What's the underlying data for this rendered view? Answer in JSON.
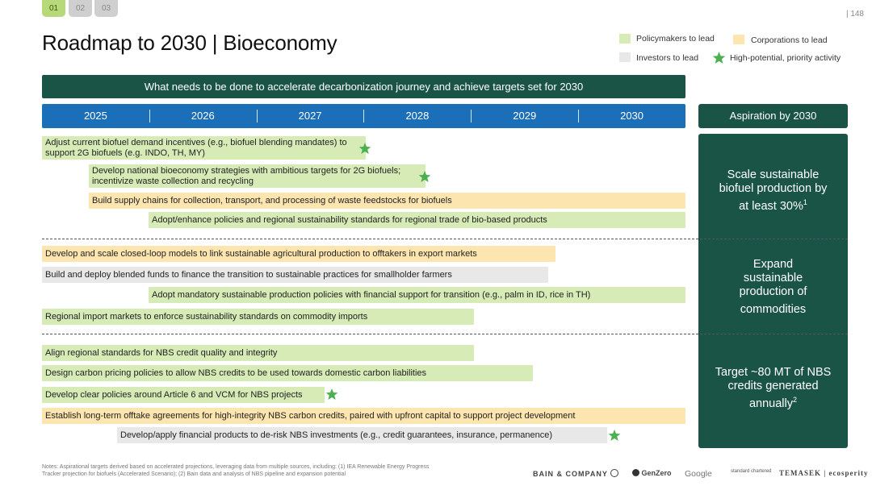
{
  "tabs": [
    "01",
    "02",
    "03"
  ],
  "page_number": "| 148",
  "title": "Roadmap to 2030 | Bioeconomy",
  "legend": {
    "policymakers": "Policymakers to lead",
    "corporations": "Corporations to lead",
    "investors": "Investors to lead",
    "priority": "High-potential, priority activity"
  },
  "colors": {
    "policymakers": "#d7ebb7",
    "corporations": "#fde5b0",
    "investors": "#e8e8e8",
    "dark_green": "#1a5446",
    "blue": "#1a6fb8",
    "star": "#4caf50"
  },
  "banner": "What needs to be done to accelerate decarbonization journey and achieve targets set for 2030",
  "years": [
    "2025",
    "2026",
    "2027",
    "2028",
    "2029",
    "2030"
  ],
  "aspiration_header": "Aspiration by 2030",
  "aspirations": [
    {
      "text": "Scale sustainable biofuel production by at least 30%",
      "sup": "1"
    },
    {
      "text": "Expand sustainable production of commodities",
      "sup": ""
    },
    {
      "text": "Target ~80 MT of NBS credits generated annually",
      "sup": "2"
    }
  ],
  "activities": [
    {
      "text": "Adjust current biofuel demand incentives (e.g., biofuel blending mandates) to support 2G biofuels (e.g. INDO, TH, MY)",
      "lead": "policymakers",
      "priority": true
    },
    {
      "text": "Develop national bioeconomy strategies with ambitious targets for 2G biofuels; incentivize waste collection and recycling",
      "lead": "policymakers",
      "priority": true
    },
    {
      "text": "Build supply chains for collection, transport, and processing of waste feedstocks for biofuels",
      "lead": "corporations",
      "priority": false
    },
    {
      "text": "Adopt/enhance policies and regional sustainability standards for regional trade of bio-based products",
      "lead": "policymakers",
      "priority": false
    },
    {
      "text": "Develop and scale closed-loop models to link sustainable agricultural production to offtakers in export markets",
      "lead": "corporations",
      "priority": false
    },
    {
      "text": "Build and deploy blended funds to finance the transition to sustainable practices for smallholder farmers",
      "lead": "investors",
      "priority": false
    },
    {
      "text": "Adopt mandatory sustainable production policies with financial support for transition (e.g., palm in ID, rice in TH)",
      "lead": "policymakers",
      "priority": false
    },
    {
      "text": "Regional import markets to enforce sustainability standards on commodity imports",
      "lead": "policymakers",
      "priority": false
    },
    {
      "text": "Align regional standards for NBS credit quality and integrity",
      "lead": "policymakers",
      "priority": false
    },
    {
      "text": "Design carbon pricing policies to allow NBS credits to be used towards domestic carbon liabilities",
      "lead": "policymakers",
      "priority": false
    },
    {
      "text": "Develop clear policies around Article 6 and VCM for NBS projects",
      "lead": "policymakers",
      "priority": true
    },
    {
      "text": "Establish long-term offtake agreements for high-integrity NBS carbon credits, paired with upfront capital to support project development",
      "lead": "corporations",
      "priority": false
    },
    {
      "text": "Develop/apply financial products to de-risk NBS investments (e.g., credit guarantees, insurance, permanence)",
      "lead": "investors",
      "priority": true
    }
  ],
  "notes": "Notes: Aspirational targets derived based on accelerated projections, leveraging data from multiple sources, including: (1) IEA Renewable Energy Progress Tracker projection for biofuels (Accelerated Scenario); (2) Bain data and analysis of NBS pipeline and expansion potential",
  "logos": {
    "bain": "BAIN & COMPANY",
    "genzero": "GenZero",
    "google": "Google",
    "standard_chartered": "standard chartered",
    "temasek": "TEMASEK | ecosperity"
  }
}
